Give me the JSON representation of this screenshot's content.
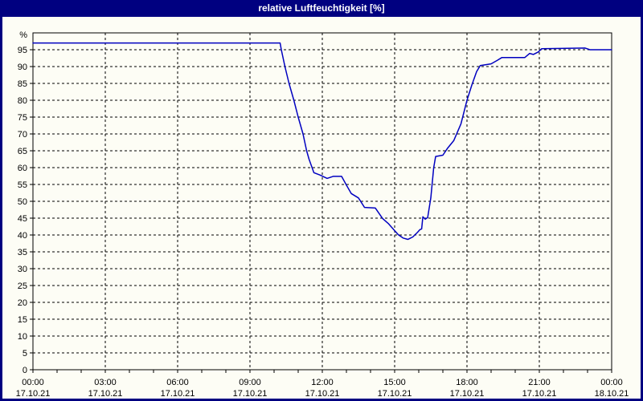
{
  "window": {
    "title": "relative Luftfeuchtigkeit [%]",
    "titlebar_color": "#000080",
    "background_color": "#FDFDF5"
  },
  "chart_data": {
    "type": "line",
    "title": "relative Luftfeuchtigkeit [%]",
    "ylabel_unit": "%",
    "ylim": [
      0,
      100
    ],
    "y_tick_step": 5,
    "y_tick_labels": [
      "0",
      "5",
      "10",
      "15",
      "20",
      "25",
      "30",
      "35",
      "40",
      "45",
      "50",
      "55",
      "60",
      "65",
      "70",
      "75",
      "80",
      "85",
      "90",
      "95"
    ],
    "grid": "dashed-black, horizontal every 5 units, vertical every 3 hours, minor x ticks hourly",
    "x_range_hours": [
      0,
      24
    ],
    "x_major_ticks": [
      {
        "hour": 0,
        "time": "00:00",
        "date": "17.10.21"
      },
      {
        "hour": 3,
        "time": "03:00",
        "date": "17.10.21"
      },
      {
        "hour": 6,
        "time": "06:00",
        "date": "17.10.21"
      },
      {
        "hour": 9,
        "time": "09:00",
        "date": "17.10.21"
      },
      {
        "hour": 12,
        "time": "12:00",
        "date": "17.10.21"
      },
      {
        "hour": 15,
        "time": "15:00",
        "date": "17.10.21"
      },
      {
        "hour": 18,
        "time": "18:00",
        "date": "17.10.21"
      },
      {
        "hour": 21,
        "time": "21:00",
        "date": "17.10.21"
      },
      {
        "hour": 24,
        "time": "00:00",
        "date": "18.10.21"
      }
    ],
    "series": [
      {
        "name": "relative Luftfeuchtigkeit",
        "color": "#0000C0",
        "points_hour_value": [
          [
            0.0,
            97.0
          ],
          [
            10.25,
            97.0
          ],
          [
            10.3,
            95.0
          ],
          [
            10.45,
            90.0
          ],
          [
            10.62,
            85.0
          ],
          [
            10.82,
            80.0
          ],
          [
            11.0,
            75.0
          ],
          [
            11.2,
            70.0
          ],
          [
            11.35,
            65.0
          ],
          [
            11.45,
            62.5
          ],
          [
            11.65,
            58.5
          ],
          [
            11.9,
            57.8
          ],
          [
            12.2,
            56.8
          ],
          [
            12.45,
            57.4
          ],
          [
            12.8,
            57.4
          ],
          [
            13.0,
            54.8
          ],
          [
            13.2,
            52.3
          ],
          [
            13.5,
            51.0
          ],
          [
            13.75,
            48.2
          ],
          [
            14.2,
            48.0
          ],
          [
            14.5,
            44.9
          ],
          [
            14.75,
            43.3
          ],
          [
            14.95,
            41.7
          ],
          [
            15.15,
            40.1
          ],
          [
            15.35,
            39.1
          ],
          [
            15.55,
            38.7
          ],
          [
            15.75,
            39.4
          ],
          [
            15.95,
            40.8
          ],
          [
            16.05,
            41.6
          ],
          [
            16.12,
            41.8
          ],
          [
            16.17,
            45.4
          ],
          [
            16.27,
            44.7
          ],
          [
            16.37,
            45.2
          ],
          [
            16.5,
            51.0
          ],
          [
            16.62,
            60.0
          ],
          [
            16.7,
            63.3
          ],
          [
            17.0,
            63.7
          ],
          [
            17.2,
            65.8
          ],
          [
            17.45,
            68.0
          ],
          [
            17.75,
            73.0
          ],
          [
            18.0,
            80.0
          ],
          [
            18.2,
            84.5
          ],
          [
            18.4,
            88.5
          ],
          [
            18.55,
            90.3
          ],
          [
            19.0,
            90.8
          ],
          [
            19.25,
            91.8
          ],
          [
            19.45,
            92.7
          ],
          [
            20.4,
            92.7
          ],
          [
            20.6,
            93.9
          ],
          [
            20.75,
            93.6
          ],
          [
            20.95,
            94.3
          ],
          [
            21.1,
            95.3
          ],
          [
            22.9,
            95.5
          ],
          [
            23.1,
            95.0
          ],
          [
            24.0,
            95.0
          ]
        ]
      }
    ],
    "styles": {
      "grid_color": "#000000",
      "axis_color": "#000000",
      "line_color": "#0000C0",
      "plot_bg": "#FDFDF5"
    }
  }
}
